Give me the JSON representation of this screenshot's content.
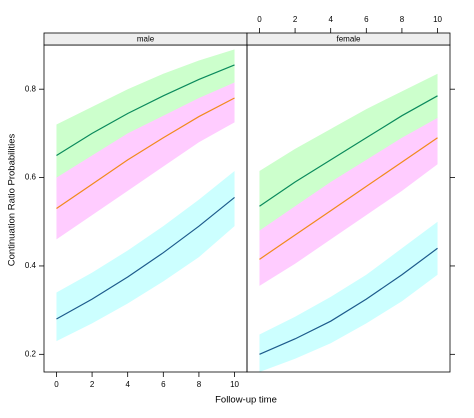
{
  "chart_data": {
    "type": "line",
    "xlabel": "Follow-up time",
    "ylabel": "Continuation Ratio Probabilities",
    "ylim": [
      0.16,
      0.9
    ],
    "yticks": [
      0.2,
      0.4,
      0.6,
      0.8
    ],
    "xlim": [
      -0.7,
      10.7
    ],
    "xticks": [
      0,
      2,
      4,
      6,
      8,
      10
    ],
    "panels": [
      {
        "title": "male",
        "x": [
          0,
          2,
          4,
          6,
          8,
          10
        ],
        "series": [
          {
            "color": "#0b8a5c",
            "band_color": "#ccffcc",
            "values": [
              0.65,
              0.7,
              0.745,
              0.785,
              0.822,
              0.855
            ],
            "lower": [
              0.58,
              0.635,
              0.685,
              0.735,
              0.778,
              0.815
            ],
            "upper": [
              0.72,
              0.76,
              0.8,
              0.835,
              0.865,
              0.89
            ]
          },
          {
            "color": "#f08a1c",
            "band_color": "#ffccff",
            "values": [
              0.53,
              0.585,
              0.64,
              0.69,
              0.738,
              0.78
            ],
            "lower": [
              0.46,
              0.515,
              0.57,
              0.625,
              0.68,
              0.725
            ],
            "upper": [
              0.6,
              0.65,
              0.7,
              0.74,
              0.78,
              0.815
            ]
          },
          {
            "color": "#1d5b8c",
            "band_color": "#ccffff",
            "values": [
              0.28,
              0.325,
              0.375,
              0.43,
              0.49,
              0.555
            ],
            "lower": [
              0.23,
              0.27,
              0.315,
              0.365,
              0.42,
              0.49
            ],
            "upper": [
              0.34,
              0.385,
              0.435,
              0.49,
              0.55,
              0.615
            ]
          }
        ]
      },
      {
        "title": "female",
        "x": [
          0,
          2,
          4,
          6,
          8,
          10
        ],
        "series": [
          {
            "color": "#0b8a5c",
            "band_color": "#ccffcc",
            "values": [
              0.535,
              0.59,
              0.64,
              0.69,
              0.74,
              0.785
            ],
            "lower": [
              0.46,
              0.515,
              0.57,
              0.625,
              0.68,
              0.73
            ],
            "upper": [
              0.615,
              0.665,
              0.71,
              0.755,
              0.795,
              0.835
            ]
          },
          {
            "color": "#f08a1c",
            "band_color": "#ffccff",
            "values": [
              0.415,
              0.47,
              0.525,
              0.58,
              0.635,
              0.69
            ],
            "lower": [
              0.355,
              0.405,
              0.46,
              0.515,
              0.57,
              0.63
            ],
            "upper": [
              0.48,
              0.535,
              0.59,
              0.64,
              0.69,
              0.735
            ]
          },
          {
            "color": "#1d5b8c",
            "band_color": "#ccffff",
            "values": [
              0.2,
              0.235,
              0.275,
              0.325,
              0.38,
              0.44
            ],
            "lower": [
              0.16,
              0.19,
              0.225,
              0.27,
              0.32,
              0.38
            ],
            "upper": [
              0.245,
              0.285,
              0.33,
              0.38,
              0.44,
              0.5
            ]
          }
        ]
      }
    ]
  }
}
